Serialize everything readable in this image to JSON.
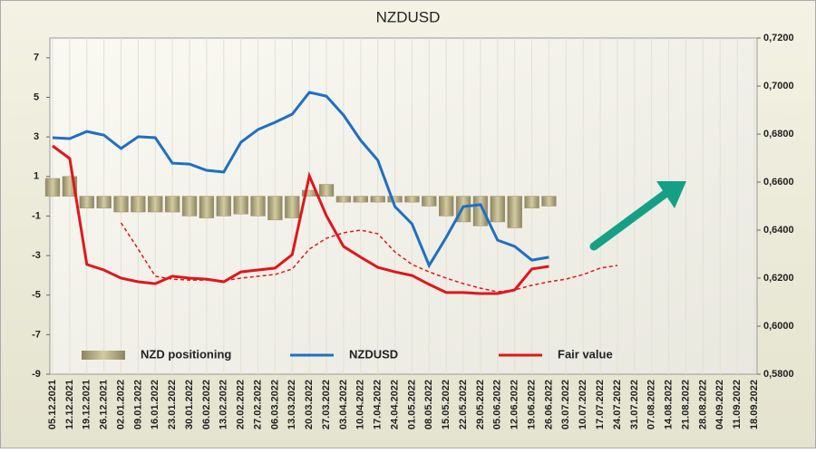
{
  "chart_data": {
    "type": "bar-line",
    "title": "NZDUSD",
    "categories": [
      "05.12.2021",
      "12.12.2021",
      "19.12.2021",
      "26.12.2021",
      "02.01.2022",
      "09.01.2022",
      "16.01.2022",
      "23.01.2022",
      "30.01.2022",
      "06.02.2022",
      "13.02.2022",
      "20.02.2022",
      "27.02.2022",
      "06.03.2022",
      "13.03.2022",
      "20.03.2022",
      "27.03.2022",
      "03.04.2022",
      "10.04.2022",
      "17.04.2022",
      "24.04.2022",
      "01.05.2022",
      "08.05.2022",
      "15.05.2022",
      "22.05.2022",
      "29.05.2022",
      "05.06.2022",
      "12.06.2022",
      "19.06.2022",
      "26.06.2022",
      "03.07.2022",
      "10.07.2022",
      "17.07.2022",
      "24.07.2022",
      "31.07.2022",
      "07.08.2022",
      "14.08.2022",
      "21.08.2022",
      "28.08.2022",
      "04.09.2022",
      "11.09.2022",
      "18.09.2022"
    ],
    "series": [
      {
        "name": "NZD positioning",
        "type": "bar",
        "color": "#b3ab7c",
        "values": [
          0.9,
          1.0,
          -0.6,
          -0.6,
          -0.8,
          -0.8,
          -0.8,
          -0.8,
          -1.0,
          -1.1,
          -1.0,
          -0.9,
          -1.0,
          -1.2,
          -1.1,
          0.3,
          0.6,
          -0.3,
          -0.3,
          -0.3,
          -0.3,
          -0.3,
          -0.5,
          -1.0,
          -1.3,
          -1.5,
          -1.3,
          -1.6,
          -0.6,
          -0.5,
          null,
          null,
          null,
          null,
          null,
          null,
          null,
          null,
          null,
          null,
          null,
          null
        ]
      },
      {
        "name": "NZDUSD",
        "type": "line",
        "axis": "y2",
        "color": "#1f6fc5",
        "values": [
          0.6785,
          0.6781,
          0.6811,
          0.6796,
          0.674,
          0.6789,
          0.6785,
          0.6679,
          0.6675,
          0.6649,
          0.6642,
          0.6766,
          0.6819,
          0.6849,
          0.6883,
          0.6974,
          0.6958,
          0.6879,
          0.6774,
          0.6691,
          0.6498,
          0.6426,
          0.6253,
          0.637,
          0.6498,
          0.6506,
          0.6358,
          0.6332,
          0.6275,
          0.6287,
          null,
          null,
          null,
          null,
          null,
          null,
          null,
          null,
          null,
          null,
          null,
          null
        ]
      },
      {
        "name": "Fair value",
        "type": "line",
        "axis": "y2",
        "color": "#e0161b",
        "values": [
          0.6751,
          0.6698,
          0.6257,
          0.6234,
          0.62,
          0.6185,
          0.6177,
          0.6208,
          0.62,
          0.6196,
          0.6185,
          0.6226,
          0.6234,
          0.6242,
          0.6298,
          0.6626,
          0.646,
          0.6332,
          0.6287,
          0.6245,
          0.6226,
          0.6211,
          0.6174,
          0.614,
          0.614,
          0.6136,
          0.6136,
          0.6151,
          0.6238,
          0.6249,
          null,
          null,
          null,
          null,
          null,
          null,
          null,
          null,
          null,
          null,
          null,
          null
        ]
      },
      {
        "type": "line",
        "axis": "y2",
        "color": "#e0161b",
        "dashed": true,
        "values": [
          null,
          null,
          null,
          null,
          0.643,
          0.6321,
          0.6208,
          0.6196,
          0.6192,
          0.6192,
          0.6189,
          0.62,
          0.6208,
          0.6215,
          0.6238,
          0.6321,
          0.6366,
          0.6389,
          0.64,
          0.6385,
          0.6309,
          0.6257,
          0.6226,
          0.62,
          0.6177,
          0.6158,
          0.6143,
          0.6151,
          0.617,
          0.6185,
          0.6196,
          0.6215,
          0.6242,
          0.6253,
          null,
          null,
          null,
          null,
          null,
          null,
          null,
          null
        ]
      }
    ],
    "ylim": [
      -9,
      8
    ],
    "yticks": [
      7,
      5,
      3,
      1,
      -1,
      -3,
      -5,
      -7,
      -9
    ],
    "y2lim": [
      0.58,
      0.72
    ],
    "y2ticks": [
      {
        "value": 0.72,
        "label": "0,7200"
      },
      {
        "value": 0.7,
        "label": "0,7000"
      },
      {
        "value": 0.68,
        "label": "0,6800"
      },
      {
        "value": 0.66,
        "label": "0,6600"
      },
      {
        "value": 0.64,
        "label": "0,6400"
      },
      {
        "value": 0.62,
        "label": "0,6200"
      },
      {
        "value": 0.6,
        "label": "0,6000"
      },
      {
        "value": 0.58,
        "label": "0,5800"
      }
    ],
    "grid": "x",
    "legend": "bottom"
  }
}
